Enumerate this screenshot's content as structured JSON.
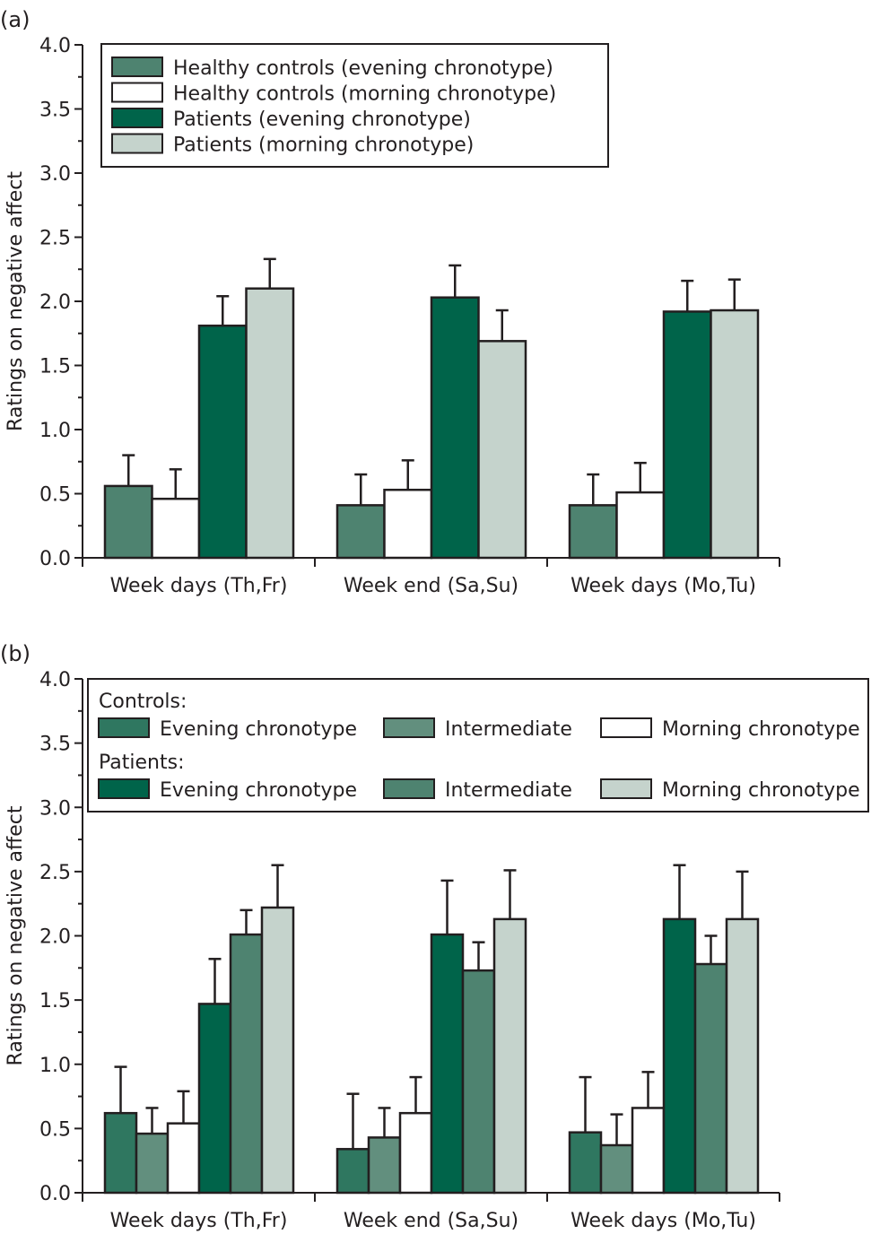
{
  "chart_data": [
    {
      "panel": "(a)",
      "type": "bar",
      "title": "",
      "xlabel": "",
      "ylabel": "Ratings on negative affect",
      "ylim": [
        0,
        4.0
      ],
      "yticks": [
        "0.0",
        "0.5",
        "1.0",
        "1.5",
        "2.0",
        "2.5",
        "3.0",
        "3.5",
        "4.0"
      ],
      "grid": false,
      "legend_position": "top-left",
      "categories": [
        "Week days (Th,Fr)",
        "Week end (Sa,Su)",
        "Week days (Mo,Tu)"
      ],
      "series": [
        {
          "name": "Healthy controls (evening chronotype)",
          "color": "#4e8370",
          "values": [
            0.56,
            0.41,
            0.41
          ],
          "error_upper": [
            0.8,
            0.65,
            0.65
          ]
        },
        {
          "name": "Healthy controls (morning chronotype)",
          "color": "#ffffff",
          "values": [
            0.46,
            0.53,
            0.51
          ],
          "error_upper": [
            0.69,
            0.76,
            0.74
          ]
        },
        {
          "name": "Patients (evening chronotype)",
          "color": "#00644a",
          "values": [
            1.81,
            2.03,
            1.92
          ],
          "error_upper": [
            2.04,
            2.28,
            2.16
          ]
        },
        {
          "name": "Patients (morning chronotype)",
          "color": "#c5d3cc",
          "values": [
            2.1,
            1.69,
            1.93
          ],
          "error_upper": [
            2.33,
            1.93,
            2.17
          ]
        }
      ]
    },
    {
      "panel": "(b)",
      "type": "bar",
      "title": "",
      "xlabel": "",
      "ylabel": "Ratings on negative affect",
      "ylim": [
        0,
        4.0
      ],
      "yticks": [
        "0.0",
        "0.5",
        "1.0",
        "1.5",
        "2.0",
        "2.5",
        "3.0",
        "3.5",
        "4.0"
      ],
      "grid": false,
      "legend_position": "top",
      "legend_groups": [
        {
          "heading": "Controls:",
          "items": [
            0,
            1,
            2
          ]
        },
        {
          "heading": "Patients:",
          "items": [
            3,
            4,
            5
          ]
        }
      ],
      "categories": [
        "Week days (Th,Fr)",
        "Week end (Sa,Su)",
        "Week days (Mo,Tu)"
      ],
      "series": [
        {
          "name": "Evening chronotype",
          "group": "Controls",
          "color": "#2f7760",
          "values": [
            0.62,
            0.34,
            0.47
          ],
          "error_upper": [
            0.98,
            0.77,
            0.9
          ]
        },
        {
          "name": "Intermediate",
          "group": "Controls",
          "color": "#628f7e",
          "values": [
            0.46,
            0.43,
            0.37
          ],
          "error_upper": [
            0.66,
            0.66,
            0.61
          ]
        },
        {
          "name": "Morning chronotype",
          "group": "Controls",
          "color": "#ffffff",
          "values": [
            0.54,
            0.62,
            0.66
          ],
          "error_upper": [
            0.79,
            0.9,
            0.94
          ]
        },
        {
          "name": "Evening chronotype",
          "group": "Patients",
          "color": "#00644a",
          "values": [
            1.47,
            2.01,
            2.13
          ],
          "error_upper": [
            1.82,
            2.43,
            2.55
          ]
        },
        {
          "name": "Intermediate",
          "group": "Patients",
          "color": "#4e8370",
          "values": [
            2.01,
            1.73,
            1.78
          ],
          "error_upper": [
            2.2,
            1.95,
            2.0
          ]
        },
        {
          "name": "Morning chronotype",
          "group": "Patients",
          "color": "#c5d3cc",
          "values": [
            2.22,
            2.13,
            2.13
          ],
          "error_upper": [
            2.55,
            2.51,
            2.5
          ]
        }
      ]
    }
  ]
}
